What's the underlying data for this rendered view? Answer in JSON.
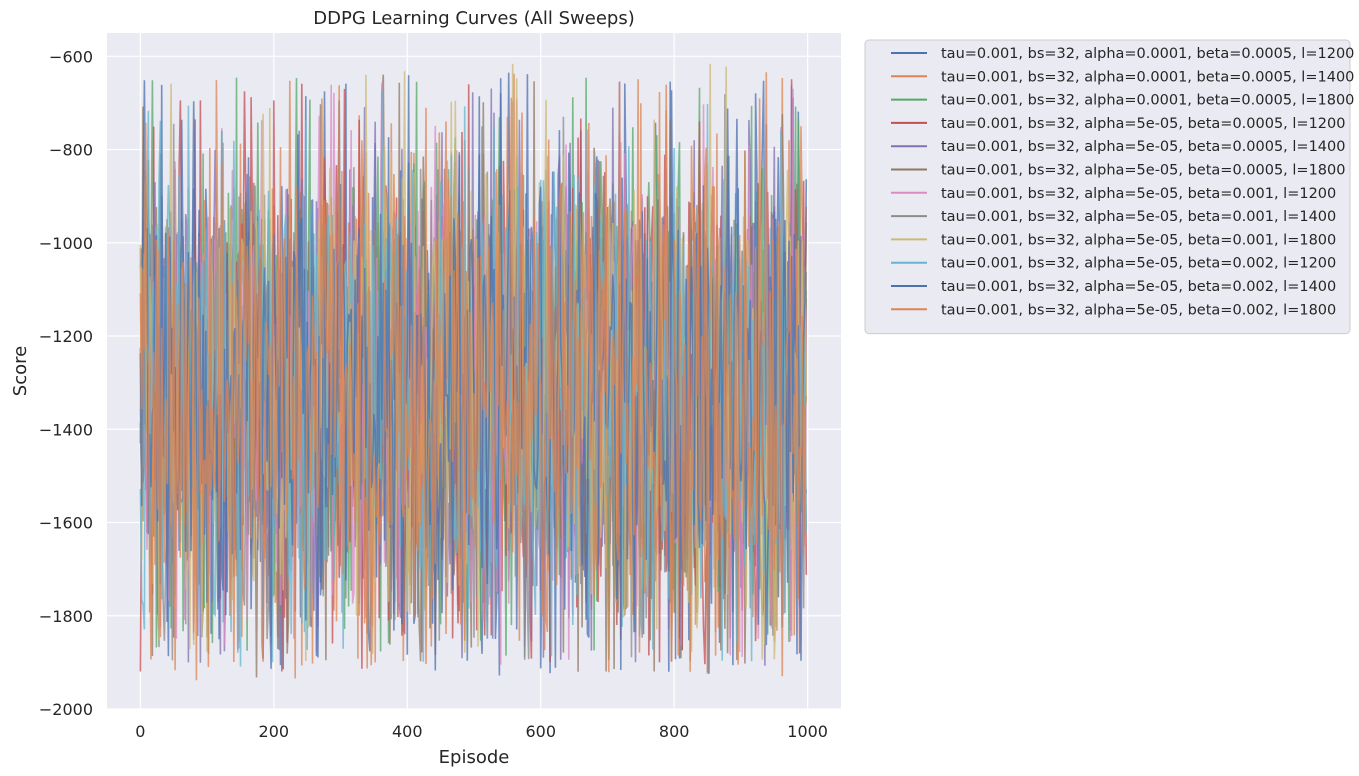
{
  "chart_data": {
    "type": "line",
    "title": "DDPG Learning Curves (All Sweeps)",
    "xlabel": "Episode",
    "ylabel": "Score",
    "xlim": [
      -50,
      1050
    ],
    "ylim": [
      -2000,
      -550
    ],
    "xticks": [
      0,
      200,
      400,
      600,
      800,
      1000
    ],
    "yticks": [
      -2000,
      -1800,
      -1600,
      -1400,
      -1200,
      -1000,
      -800,
      -600
    ],
    "grid": true,
    "legend_position": "outside-top-right",
    "series_note": "each series spans episodes 0-999 with noisy scores between about -1940 and -615",
    "series": [
      {
        "name": "tau=0.001, bs=32, alpha=0.0001, beta=0.0005, l=1200",
        "color": "#4c72b0",
        "episodes": [
          0,
          999
        ],
        "score_range": [
          -1930,
          -630
        ]
      },
      {
        "name": "tau=0.001, bs=32, alpha=0.0001, beta=0.0005, l=1400",
        "color": "#dd8452",
        "episodes": [
          0,
          999
        ],
        "score_range": [
          -1920,
          -635
        ]
      },
      {
        "name": "tau=0.001, bs=32, alpha=0.0001, beta=0.0005, l=1800",
        "color": "#55a868",
        "episodes": [
          0,
          999
        ],
        "score_range": [
          -1900,
          -620
        ]
      },
      {
        "name": "tau=0.001, bs=32, alpha=5e-05, beta=0.0005, l=1200",
        "color": "#c44e52",
        "episodes": [
          0,
          999
        ],
        "score_range": [
          -1920,
          -630
        ]
      },
      {
        "name": "tau=0.001, bs=32, alpha=5e-05, beta=0.0005, l=1400",
        "color": "#8172b3",
        "episodes": [
          0,
          999
        ],
        "score_range": [
          -1910,
          -650
        ]
      },
      {
        "name": "tau=0.001, bs=32, alpha=5e-05, beta=0.0005, l=1800",
        "color": "#937860",
        "episodes": [
          0,
          999
        ],
        "score_range": [
          -1940,
          -630
        ]
      },
      {
        "name": "tau=0.001, bs=32, alpha=5e-05, beta=0.001, l=1200",
        "color": "#da8bc3",
        "episodes": [
          0,
          999
        ],
        "score_range": [
          -1910,
          -640
        ]
      },
      {
        "name": "tau=0.001, bs=32, alpha=5e-05, beta=0.001, l=1400",
        "color": "#8c8c8c",
        "episodes": [
          0,
          999
        ],
        "score_range": [
          -1900,
          -650
        ]
      },
      {
        "name": "tau=0.001, bs=32, alpha=5e-05, beta=0.001, l=1800",
        "color": "#ccb974",
        "episodes": [
          0,
          999
        ],
        "score_range": [
          -1900,
          -615
        ]
      },
      {
        "name": "tau=0.001, bs=32, alpha=5e-05, beta=0.002, l=1200",
        "color": "#64b5cd",
        "episodes": [
          0,
          999
        ],
        "score_range": [
          -1910,
          -670
        ]
      },
      {
        "name": "tau=0.001, bs=32, alpha=5e-05, beta=0.002, l=1400",
        "color": "#4c72b0",
        "episodes": [
          0,
          999
        ],
        "score_range": [
          -1920,
          -630
        ]
      },
      {
        "name": "tau=0.001, bs=32, alpha=5e-05, beta=0.002, l=1800",
        "color": "#dd8452",
        "episodes": [
          0,
          999
        ],
        "score_range": [
          -1940,
          -630
        ]
      }
    ]
  }
}
